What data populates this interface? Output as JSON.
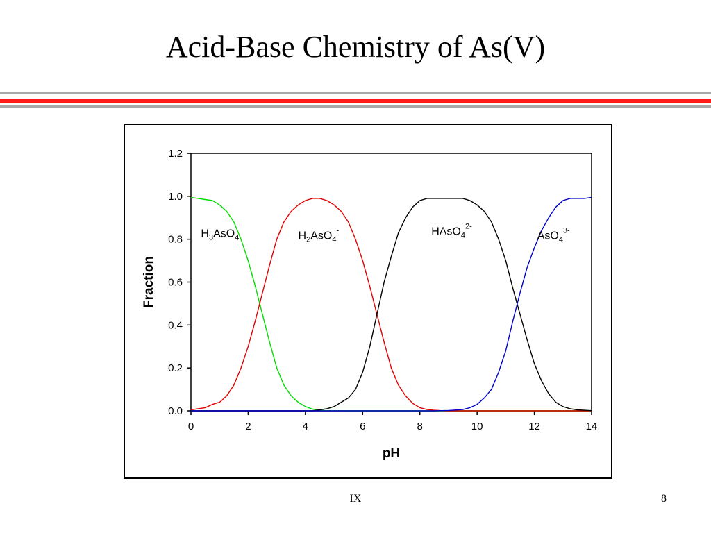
{
  "slide": {
    "title": "Acid-Base Chemistry of As(V)",
    "footer_center": "IX",
    "page_number": "8"
  },
  "chart_data": {
    "type": "line",
    "title": "",
    "xlabel": "pH",
    "ylabel": "Fraction",
    "xlim": [
      0,
      14
    ],
    "ylim": [
      0,
      1.2
    ],
    "x_ticks": [
      "0",
      "2",
      "4",
      "6",
      "8",
      "10",
      "12",
      "14"
    ],
    "y_ticks": [
      "0.0",
      "0.2",
      "0.4",
      "0.6",
      "0.8",
      "1.0",
      "1.2"
    ],
    "grid": false,
    "x": [
      0,
      0.25,
      0.5,
      0.75,
      1,
      1.25,
      1.5,
      1.75,
      2,
      2.25,
      2.5,
      2.75,
      3,
      3.25,
      3.5,
      3.75,
      4,
      4.25,
      4.5,
      4.75,
      5,
      5.25,
      5.5,
      5.75,
      6,
      6.25,
      6.5,
      6.75,
      7,
      7.25,
      7.5,
      7.75,
      8,
      8.25,
      8.5,
      8.75,
      9,
      9.25,
      9.5,
      9.75,
      10,
      10.25,
      10.5,
      10.75,
      11,
      11.25,
      11.5,
      11.75,
      12,
      12.25,
      12.5,
      12.75,
      13,
      13.25,
      13.5,
      13.75,
      14
    ],
    "series": [
      {
        "name": "H3AsO4",
        "color": "#00dd00",
        "values": [
          0.995,
          0.99,
          0.985,
          0.98,
          0.96,
          0.93,
          0.88,
          0.8,
          0.7,
          0.58,
          0.45,
          0.32,
          0.2,
          0.12,
          0.07,
          0.04,
          0.02,
          0.008,
          0.003,
          0.001,
          0.0005,
          0.0002,
          0,
          0,
          0,
          0,
          0,
          0,
          0,
          0,
          0,
          0,
          0,
          0,
          0,
          0,
          0,
          0,
          0,
          0,
          0,
          0,
          0,
          0,
          0,
          0,
          0,
          0,
          0,
          0,
          0,
          0,
          0,
          0,
          0,
          0,
          0
        ]
      },
      {
        "name": "H2AsO4-",
        "color": "#e00000",
        "values": [
          0.005,
          0.01,
          0.015,
          0.03,
          0.04,
          0.07,
          0.12,
          0.2,
          0.3,
          0.42,
          0.55,
          0.68,
          0.8,
          0.88,
          0.93,
          0.96,
          0.98,
          0.99,
          0.99,
          0.98,
          0.96,
          0.93,
          0.88,
          0.8,
          0.7,
          0.58,
          0.45,
          0.32,
          0.2,
          0.12,
          0.07,
          0.035,
          0.015,
          0.006,
          0.003,
          0.001,
          0,
          0,
          0,
          0,
          0,
          0,
          0,
          0,
          0,
          0,
          0,
          0,
          0,
          0,
          0,
          0,
          0,
          0,
          0,
          0,
          0
        ]
      },
      {
        "name": "HAsO4 2-",
        "color": "#000000",
        "values": [
          0,
          0,
          0,
          0,
          0,
          0,
          0,
          0,
          0,
          0,
          0,
          0,
          0,
          0,
          0,
          0,
          0,
          0,
          0.005,
          0.01,
          0.02,
          0.04,
          0.06,
          0.1,
          0.18,
          0.3,
          0.45,
          0.6,
          0.72,
          0.83,
          0.9,
          0.95,
          0.98,
          0.99,
          0.99,
          0.99,
          0.99,
          0.99,
          0.99,
          0.98,
          0.96,
          0.93,
          0.88,
          0.8,
          0.7,
          0.57,
          0.45,
          0.33,
          0.22,
          0.14,
          0.08,
          0.04,
          0.02,
          0.01,
          0.005,
          0.003,
          0.001
        ]
      },
      {
        "name": "AsO4 3-",
        "color": "#0000cc",
        "values": [
          0,
          0,
          0,
          0,
          0,
          0,
          0,
          0,
          0,
          0,
          0,
          0,
          0,
          0,
          0,
          0,
          0,
          0,
          0,
          0,
          0,
          0,
          0,
          0,
          0,
          0,
          0,
          0,
          0,
          0,
          0,
          0,
          0,
          0,
          0,
          0.001,
          0.002,
          0.004,
          0.006,
          0.015,
          0.03,
          0.06,
          0.1,
          0.18,
          0.28,
          0.42,
          0.55,
          0.67,
          0.76,
          0.84,
          0.9,
          0.95,
          0.98,
          0.99,
          0.99,
          0.99,
          0.995
        ]
      }
    ],
    "annotations": [
      {
        "base": "H",
        "sub1": "3",
        "mid": "AsO",
        "sub2": "4",
        "sup": "",
        "x": 0.35,
        "y": 0.81
      },
      {
        "base": "H",
        "sub1": "2",
        "mid": "AsO",
        "sub2": "4",
        "sup": "-",
        "x": 3.75,
        "y": 0.8
      },
      {
        "base": "",
        "sub1": "",
        "mid": "HAsO",
        "sub2": "4",
        "sup": "2-",
        "x": 8.4,
        "y": 0.82
      },
      {
        "base": "",
        "sub1": "",
        "mid": "AsO",
        "sub2": "4",
        "sup": "3-",
        "x": 12.1,
        "y": 0.8
      }
    ]
  }
}
